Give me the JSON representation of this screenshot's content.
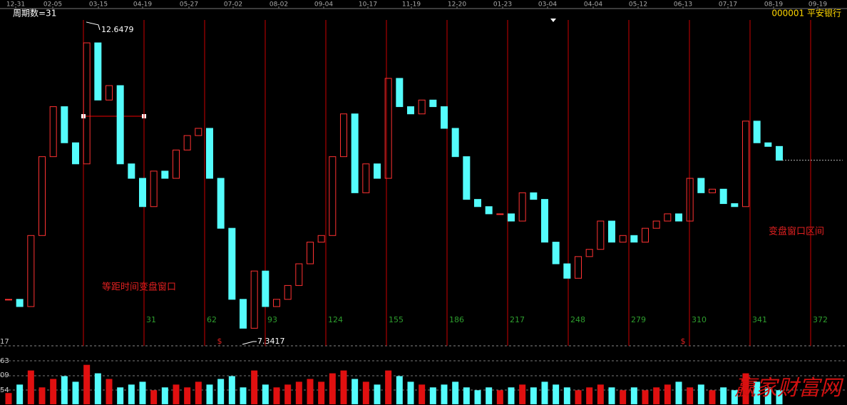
{
  "header": {
    "period_label": "周期数=31",
    "security": "000001 平安银行"
  },
  "chart_data": {
    "type": "candlestick",
    "dates": [
      "12-31",
      "02-05",
      "03-15",
      "04-19",
      "05-27",
      "07-02",
      "08-02",
      "09-04",
      "10-17",
      "11-19",
      "12-20",
      "01-23",
      "03-04",
      "04-04",
      "05-12",
      "06-13",
      "07-17",
      "08-19",
      "09-19"
    ],
    "closes": [
      8.09,
      7.97,
      9.15,
      10.46,
      11.29,
      10.69,
      10.34,
      12.35,
      11.4,
      11.64,
      10.34,
      10.1,
      9.63,
      10.22,
      10.1,
      10.57,
      10.81,
      10.93,
      10.1,
      9.27,
      8.09,
      7.61,
      8.56,
      7.97,
      8.09,
      8.32,
      8.68,
      9.04,
      9.15,
      10.46,
      11.17,
      9.86,
      10.34,
      10.1,
      11.76,
      11.29,
      11.17,
      11.4,
      11.29,
      10.93,
      10.46,
      9.75,
      9.63,
      9.51,
      9.51,
      9.39,
      9.86,
      9.75,
      9.04,
      8.68,
      8.44,
      8.8,
      8.92,
      9.39,
      9.04,
      9.15,
      9.04,
      9.27,
      9.39,
      9.51,
      9.39,
      10.1,
      9.86,
      9.92,
      9.68,
      9.63,
      11.05,
      10.69,
      10.63,
      10.4
    ],
    "volume": [
      20,
      35,
      60,
      30,
      45,
      50,
      40,
      70,
      55,
      45,
      30,
      35,
      40,
      25,
      30,
      35,
      30,
      40,
      35,
      45,
      50,
      30,
      60,
      35,
      30,
      35,
      40,
      45,
      40,
      55,
      60,
      45,
      40,
      35,
      60,
      50,
      40,
      35,
      30,
      35,
      40,
      30,
      25,
      30,
      25,
      30,
      35,
      30,
      40,
      35,
      30,
      25,
      30,
      35,
      30,
      25,
      30,
      25,
      30,
      35,
      40,
      30,
      35,
      25,
      30,
      25,
      55,
      40,
      30,
      25
    ],
    "ylim": [
      7.318,
      12.73
    ],
    "volume_lim": [
      0,
      100
    ],
    "high_label": 12.6479,
    "low_label": 7.3417,
    "cycle_marks": [
      31,
      62,
      93,
      124,
      155,
      186,
      217,
      248,
      279,
      310,
      341,
      372
    ],
    "annotations": [
      "等距时间变盘窗口",
      "变盘窗口区间"
    ],
    "axis_fragments": [
      "17",
      "63",
      "09",
      "54"
    ],
    "markers": [
      "$",
      "$"
    ],
    "watermark": "赢家财富网"
  }
}
